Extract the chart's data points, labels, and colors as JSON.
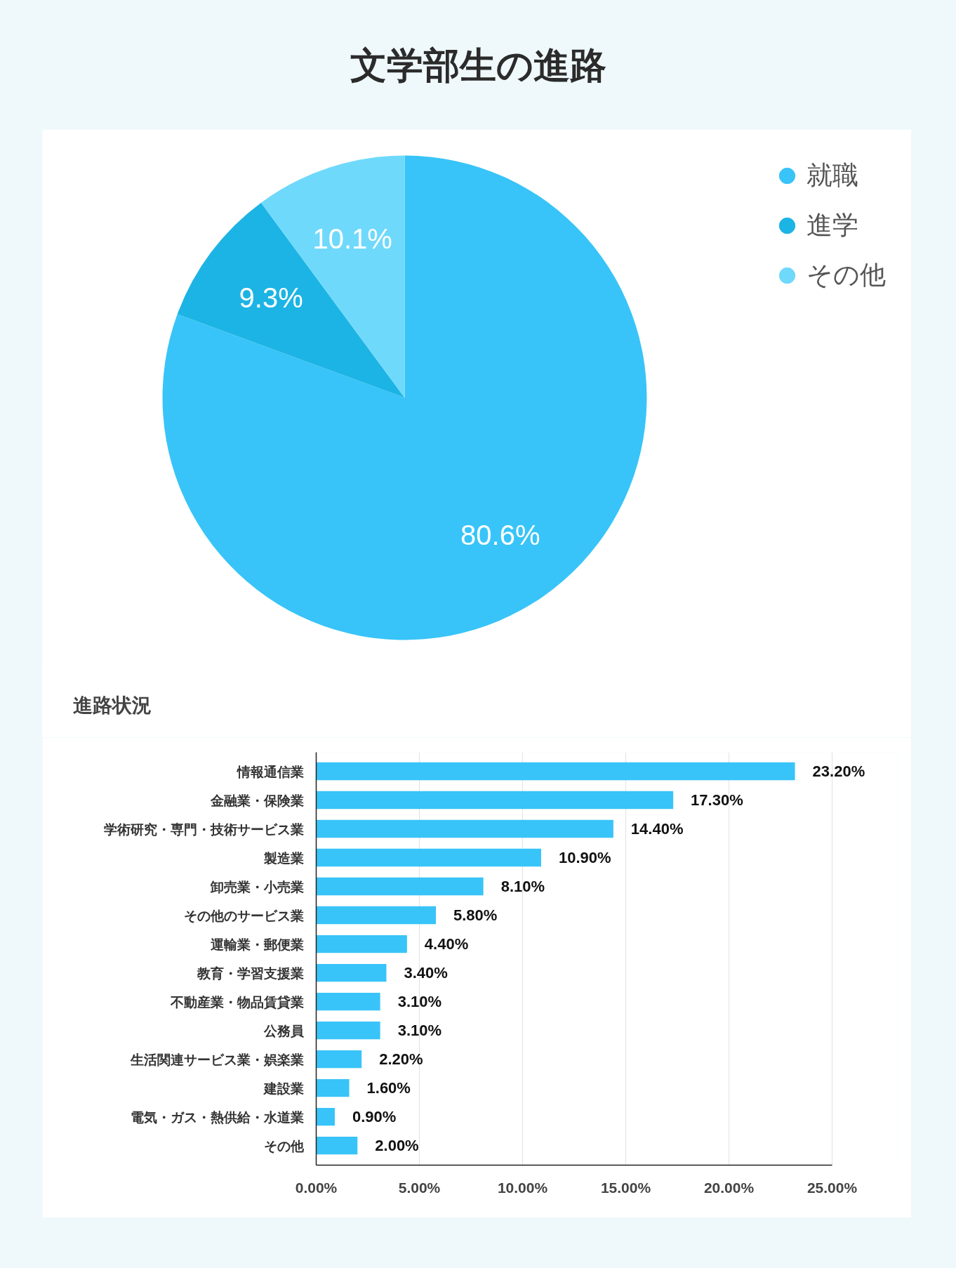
{
  "chart_data": [
    {
      "type": "pie",
      "title": "文学部生の進路",
      "categories": [
        "就職",
        "進学",
        "その他"
      ],
      "values": [
        80.6,
        9.3,
        10.1
      ],
      "colors": [
        "#38c4f8",
        "#1cb4e4",
        "#6fd9fb"
      ],
      "value_labels": [
        "80.6%",
        "9.3%",
        "10.1%"
      ],
      "legend": "top right"
    },
    {
      "type": "bar",
      "title": "進路状況",
      "orientation": "horizontal",
      "categories": [
        "情報通信業",
        "金融業・保険業",
        "学術研究・専門・技術サービス業",
        "製造業",
        "卸売業・小売業",
        "その他のサービス業",
        "運輸業・郵便業",
        "教育・学習支援業",
        "不動産業・物品賃貸業",
        "公務員",
        "生活関連サービス業・娯楽業",
        "建設業",
        "電気・ガス・熱供給・水道業",
        "その他"
      ],
      "values": [
        23.2,
        17.3,
        14.4,
        10.9,
        8.1,
        5.8,
        4.4,
        3.4,
        3.1,
        3.1,
        2.2,
        1.6,
        0.9,
        2.0
      ],
      "color": "#38c4f8",
      "value_labels": [
        "23.20%",
        "17.30%",
        "14.40%",
        "10.90%",
        "8.10%",
        "5.80%",
        "4.40%",
        "3.40%",
        "3.10%",
        "3.10%",
        "2.20%",
        "1.60%",
        "0.90%",
        "2.00%"
      ],
      "xlim": [
        0,
        25
      ],
      "xticks": [
        {
          "value": 0,
          "label": "0.00%"
        },
        {
          "value": 5,
          "label": "5.00%"
        },
        {
          "value": 10,
          "label": "10.00%"
        },
        {
          "value": 15,
          "label": "15.00%"
        },
        {
          "value": 20,
          "label": "20.00%"
        },
        {
          "value": 25,
          "label": "25.00%"
        }
      ],
      "grid": "x"
    }
  ]
}
